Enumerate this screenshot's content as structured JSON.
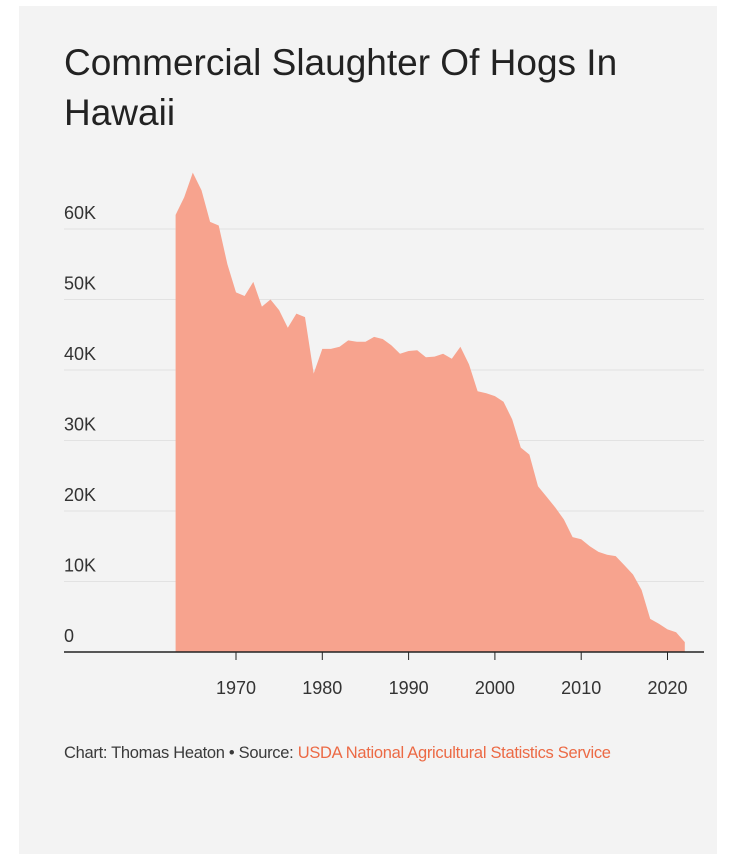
{
  "chart_data": {
    "type": "area",
    "title": "Commercial Slaughter Of Hogs In Hawaii",
    "xlabel": "",
    "ylabel": "",
    "xlim": [
      1958,
      2023
    ],
    "ylim": [
      0,
      62000
    ],
    "x_ticks": [
      "1970",
      "1980",
      "1990",
      "2000",
      "2010",
      "2020"
    ],
    "y_ticks": [
      "60K",
      "50K",
      "40K",
      "30K",
      "20K",
      "10K",
      "0"
    ],
    "grid": true,
    "fill_color": "#f7a38e",
    "x": [
      1963,
      1964,
      1965,
      1966,
      1967,
      1968,
      1969,
      1970,
      1971,
      1972,
      1973,
      1974,
      1975,
      1976,
      1977,
      1978,
      1979,
      1980,
      1981,
      1982,
      1983,
      1984,
      1985,
      1986,
      1987,
      1988,
      1989,
      1990,
      1991,
      1992,
      1993,
      1994,
      1995,
      1996,
      1997,
      1998,
      1999,
      2000,
      2001,
      2002,
      2003,
      2004,
      2005,
      2006,
      2007,
      2008,
      2009,
      2010,
      2011,
      2012,
      2013,
      2014,
      2015,
      2016,
      2017,
      2018,
      2019,
      2020,
      2021,
      2022
    ],
    "values": [
      62000,
      64500,
      68000,
      65500,
      61000,
      60500,
      55000,
      51000,
      50500,
      52500,
      49000,
      50000,
      48500,
      46000,
      48000,
      47500,
      39500,
      43000,
      43000,
      43300,
      44200,
      44000,
      44000,
      44700,
      44400,
      43500,
      42300,
      42700,
      42800,
      41800,
      41900,
      42300,
      41600,
      43300,
      40800,
      37000,
      36700,
      36300,
      35500,
      33000,
      29000,
      28000,
      23500,
      22000,
      20500,
      18800,
      16300,
      16000,
      15000,
      14200,
      13800,
      13600,
      12300,
      11000,
      8800,
      4700,
      4000,
      3200,
      2800,
      1400
    ]
  },
  "footer": {
    "credit": "Chart: Thomas Heaton • Source: ",
    "source": "USDA National Agricultural Statistics Service"
  },
  "colors": {
    "background": "#f3f3f3",
    "fill": "#f7a38e",
    "source_link": "#ec6a45"
  }
}
